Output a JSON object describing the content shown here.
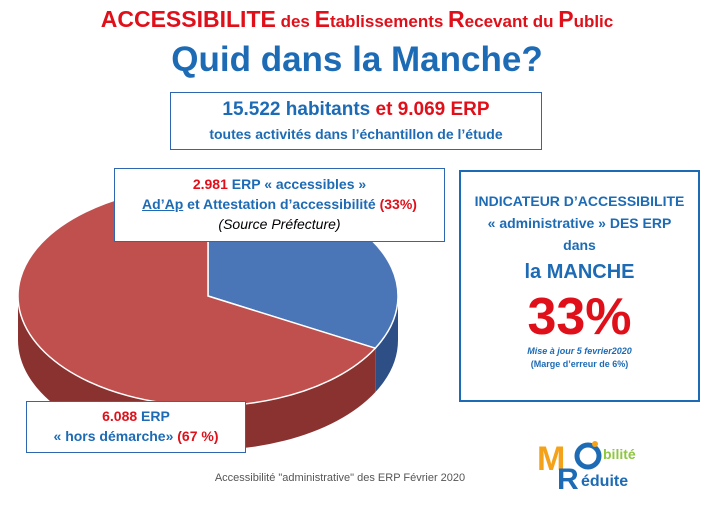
{
  "header": {
    "title_line1": [
      {
        "t": "ACCESSIBILITE",
        "c": "big"
      },
      {
        "t": " des ",
        "c": "sm"
      },
      {
        "t": "E",
        "c": "big"
      },
      {
        "t": "tablissements ",
        "c": "sm"
      },
      {
        "t": "R",
        "c": "big"
      },
      {
        "t": "ecevant du ",
        "c": "sm"
      },
      {
        "t": "P",
        "c": "big"
      },
      {
        "t": "ublic",
        "c": "sm"
      }
    ],
    "title_line2": "Quid dans la Manche?"
  },
  "summary": {
    "habitants": "15.522 habitants",
    "et": " et ",
    "erp": "9.069 ERP",
    "subtitle": "toutes activités dans l’échantillon de l’étude"
  },
  "accessible": {
    "count": "2.981",
    "label": " ERP « accessibles »",
    "line2_a": "Ad’Ap",
    "line2_b": " et Attestation d’accessibilité ",
    "pct": "(33%)",
    "source": "(Source Préfecture)"
  },
  "hors": {
    "count": "6.088",
    "label": " ERP",
    "line2": "« hors démarche» ",
    "pct": "(67 %)"
  },
  "indicator": {
    "line1": "INDICATEUR D’ACCESSIBILITE",
    "line2": "« administrative » DES ERP",
    "line3": "dans",
    "region": "la MANCHE",
    "value": "33%",
    "update": "Mise à  jour 5 fevrier2020",
    "margin": "(Marge d’erreur de 6%)"
  },
  "caption": "Accessibilité \"administrative\" des ERP Février 2020",
  "logo": {
    "text1": "bilité",
    "text2": "éduite"
  },
  "colors": {
    "accessible": "#4a76b8",
    "hors": "#c0504d",
    "title_red": "#e0101a",
    "title_blue": "#1d6bb5"
  },
  "chart_data": {
    "type": "pie",
    "categories": [
      "ERP « accessibles »",
      "hors démarche"
    ],
    "values": [
      2981,
      6088
    ],
    "percentages": [
      33,
      67
    ],
    "title": ""
  }
}
